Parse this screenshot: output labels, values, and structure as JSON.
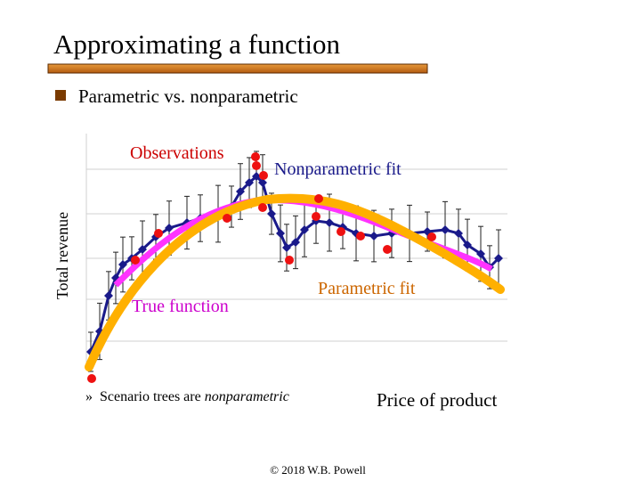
{
  "slide": {
    "title": "Approximating a function",
    "bullet": "Parametric vs. nonparametric",
    "figure": {
      "y_label": "Total revenue",
      "x_label": "Price of product",
      "observations_label": "Observations",
      "nonparametric_label": "Nonparametric fit",
      "parametric_label": "Parametric fit",
      "true_label": "True function"
    },
    "sub_bullet": {
      "marker": "»",
      "text": "Scenario trees are",
      "emphasis": "nonparametric"
    },
    "footer": "© 2018 W.B. Powell"
  }
}
